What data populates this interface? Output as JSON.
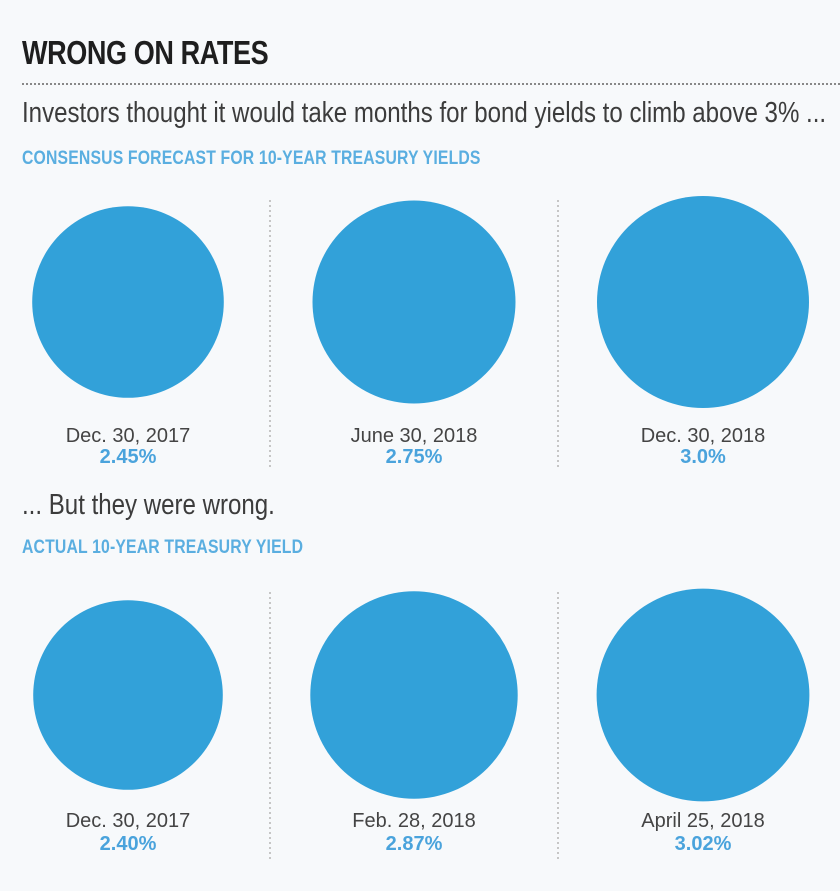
{
  "title": "WRONG ON RATES",
  "subtitle_top": "Investors thought it would take months for bond yields to climb above 3% ...",
  "subtitle_bottom": "... But they were wrong.",
  "colors": {
    "bubble": "#32a1d9",
    "accent_text": "#5aaee0",
    "separator": "#b5b5b5"
  },
  "chart_data": [
    {
      "type": "bubble",
      "title": "CONSENSUS FORECAST FOR 10-YEAR TREASURY YIELDS",
      "categories": [
        "Dec. 30, 2017",
        "June 30, 2018",
        "Dec. 30, 2018"
      ],
      "values": [
        2.45,
        2.75,
        3.0
      ],
      "value_labels": [
        "2.45%",
        "2.75%",
        "3.0%"
      ],
      "unit": "%"
    },
    {
      "type": "bubble",
      "title": "ACTUAL 10-YEAR TREASURY YIELD",
      "categories": [
        "Dec. 30, 2017",
        "Feb. 28, 2018",
        "April 25, 2018"
      ],
      "values": [
        2.4,
        2.87,
        3.02
      ],
      "value_labels": [
        "2.40%",
        "2.87%",
        "3.02%"
      ],
      "unit": "%"
    }
  ]
}
